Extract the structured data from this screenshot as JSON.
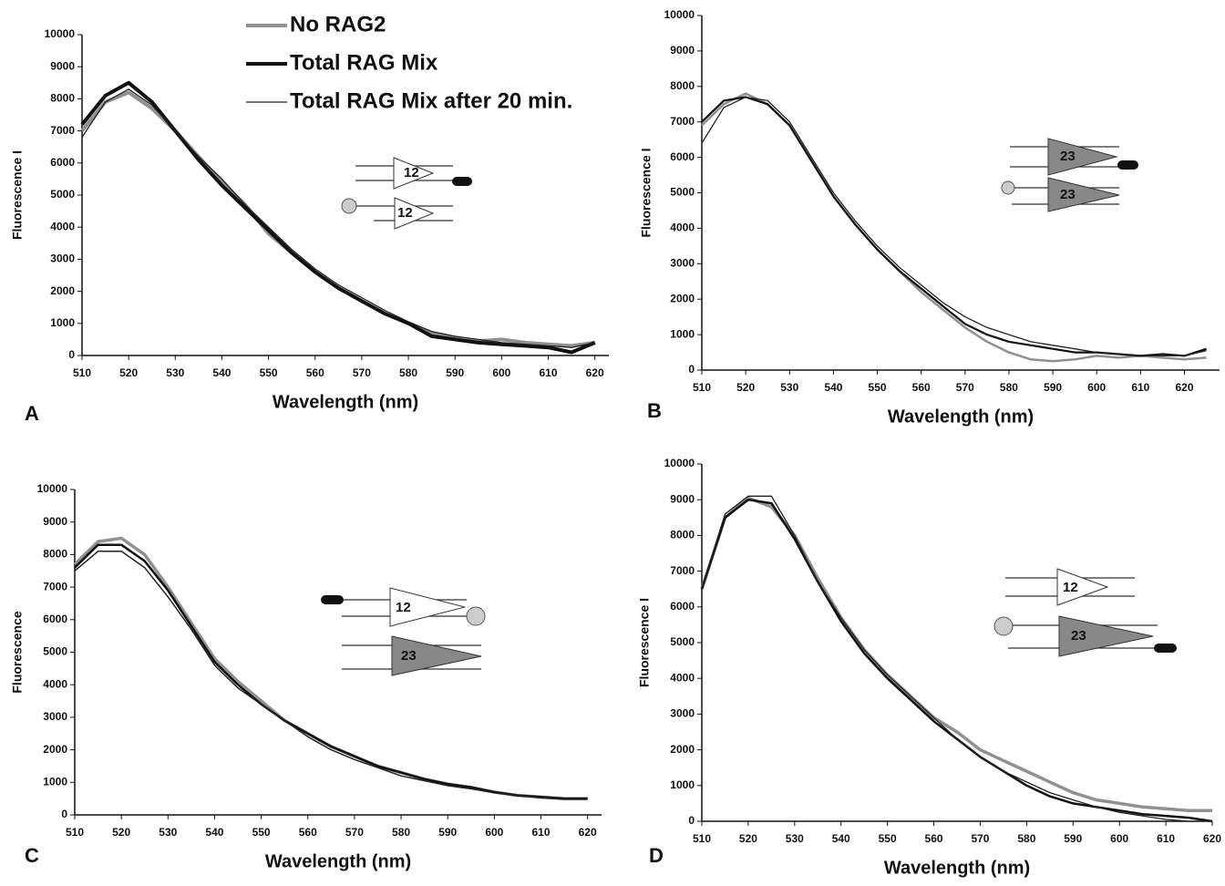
{
  "chart_data": [
    {
      "type": "line",
      "panel_label": "A",
      "x_label": "Wavelength (nm)",
      "y_label": "Fluorescence I",
      "legend": "top",
      "xlim": [
        510,
        623
      ],
      "xticks": [
        510,
        520,
        530,
        540,
        550,
        560,
        570,
        580,
        590,
        600,
        610,
        620
      ],
      "ylim": [
        0,
        10000
      ],
      "yticks": [
        0,
        1000,
        2000,
        3000,
        4000,
        5000,
        6000,
        7000,
        8000,
        9000,
        10000
      ],
      "annotations": [
        "12",
        "12"
      ],
      "x": [
        510,
        515,
        520,
        525,
        530,
        535,
        540,
        545,
        550,
        555,
        560,
        565,
        570,
        575,
        580,
        585,
        590,
        595,
        600,
        605,
        610,
        615,
        620
      ],
      "series": [
        {
          "name": "No RAG2",
          "color": "#909090",
          "line_width": 4,
          "values": [
            7000,
            7900,
            8200,
            7700,
            7000,
            6200,
            5400,
            4700,
            3800,
            3200,
            2600,
            2100,
            1700,
            1300,
            1000,
            700,
            550,
            450,
            500,
            400,
            350,
            300,
            400
          ]
        },
        {
          "name": "Total RAG Mix",
          "color": "#111111",
          "line_width": 4,
          "values": [
            7200,
            8100,
            8500,
            7900,
            7000,
            6100,
            5300,
            4600,
            3900,
            3200,
            2600,
            2100,
            1700,
            1300,
            1000,
            600,
            500,
            400,
            350,
            300,
            250,
            100,
            400
          ]
        },
        {
          "name": "Total RAG Mix after 20 min.",
          "color": "#222222",
          "line_width": 1.3,
          "values": [
            6800,
            7900,
            8300,
            7800,
            7000,
            6200,
            5500,
            4700,
            4000,
            3300,
            2700,
            2200,
            1800,
            1400,
            1050,
            750,
            600,
            500,
            400,
            350,
            300,
            250,
            400
          ]
        }
      ]
    },
    {
      "type": "line",
      "panel_label": "B",
      "x_label": "Wavelength (nm)",
      "y_label": "Fluorescence I",
      "xlim": [
        510,
        628
      ],
      "xticks": [
        510,
        520,
        530,
        540,
        550,
        560,
        570,
        580,
        590,
        600,
        610,
        620
      ],
      "ylim": [
        0,
        10000
      ],
      "yticks": [
        0,
        1000,
        2000,
        3000,
        4000,
        5000,
        6000,
        7000,
        8000,
        9000,
        10000
      ],
      "annotations": [
        "23",
        "23"
      ],
      "x": [
        510,
        515,
        520,
        525,
        530,
        535,
        540,
        545,
        550,
        555,
        560,
        565,
        570,
        575,
        580,
        585,
        590,
        595,
        600,
        605,
        610,
        615,
        620,
        625
      ],
      "series": [
        {
          "color": "#909090",
          "line_width": 2.5,
          "values": [
            6900,
            7500,
            7800,
            7500,
            6900,
            5900,
            4900,
            4100,
            3400,
            2800,
            2200,
            1700,
            1200,
            800,
            500,
            300,
            250,
            300,
            400,
            350,
            400,
            350,
            300,
            350
          ]
        },
        {
          "color": "#111111",
          "line_width": 2.2,
          "values": [
            7000,
            7600,
            7700,
            7500,
            6900,
            5900,
            4900,
            4100,
            3400,
            2800,
            2300,
            1800,
            1300,
            1000,
            800,
            700,
            600,
            500,
            500,
            450,
            400,
            450,
            400,
            600
          ]
        },
        {
          "color": "#222222",
          "line_width": 1.3,
          "values": [
            6400,
            7400,
            7700,
            7600,
            7000,
            6000,
            5000,
            4200,
            3500,
            2900,
            2400,
            1900,
            1500,
            1200,
            1000,
            800,
            700,
            600,
            500,
            450,
            400,
            400,
            400,
            550
          ]
        }
      ]
    },
    {
      "type": "line",
      "panel_label": "C",
      "x_label": "Wavelength (nm)",
      "y_label": "Fluorescence",
      "xlim": [
        510,
        623
      ],
      "xticks": [
        510,
        520,
        530,
        540,
        550,
        560,
        570,
        580,
        590,
        600,
        610,
        620
      ],
      "ylim": [
        0,
        10000
      ],
      "yticks": [
        0,
        1000,
        2000,
        3000,
        4000,
        5000,
        6000,
        7000,
        8000,
        9000,
        10000
      ],
      "annotations": [
        "12",
        "23"
      ],
      "x": [
        510,
        515,
        520,
        525,
        530,
        535,
        540,
        545,
        550,
        555,
        560,
        565,
        570,
        575,
        580,
        585,
        590,
        595,
        600,
        605,
        610,
        615,
        620
      ],
      "series": [
        {
          "color": "#909090",
          "line_width": 3.5,
          "values": [
            7700,
            8400,
            8500,
            8000,
            7000,
            5900,
            4800,
            4100,
            3500,
            2900,
            2500,
            2100,
            1800,
            1500,
            1300,
            1100,
            950,
            850,
            700,
            600,
            550,
            500,
            500
          ]
        },
        {
          "color": "#111111",
          "line_width": 2.5,
          "values": [
            7600,
            8300,
            8300,
            7800,
            6900,
            5800,
            4700,
            4000,
            3400,
            2900,
            2500,
            2100,
            1800,
            1500,
            1300,
            1100,
            950,
            850,
            700,
            600,
            550,
            500,
            500
          ]
        },
        {
          "color": "#222222",
          "line_width": 1.5,
          "values": [
            7500,
            8100,
            8100,
            7600,
            6700,
            5700,
            4600,
            3900,
            3400,
            2900,
            2400,
            2000,
            1700,
            1450,
            1200,
            1050,
            900,
            800,
            680,
            600,
            520,
            480,
            480
          ]
        }
      ]
    },
    {
      "type": "line",
      "panel_label": "D",
      "x_label": "Wavelength (nm)",
      "y_label": "Fluorescence I",
      "xlim": [
        510,
        620
      ],
      "xticks": [
        510,
        520,
        530,
        540,
        550,
        560,
        570,
        580,
        590,
        600,
        610,
        620
      ],
      "ylim": [
        0,
        10000
      ],
      "yticks": [
        0,
        1000,
        2000,
        3000,
        4000,
        5000,
        6000,
        7000,
        8000,
        9000,
        10000
      ],
      "annotations": [
        "12",
        "23"
      ],
      "x": [
        510,
        515,
        520,
        525,
        530,
        535,
        540,
        545,
        550,
        555,
        560,
        565,
        570,
        575,
        580,
        585,
        590,
        595,
        600,
        605,
        610,
        615,
        620
      ],
      "series": [
        {
          "color": "#909090",
          "line_width": 3.5,
          "values": [
            6500,
            8500,
            9050,
            8800,
            8000,
            6800,
            5700,
            4800,
            4100,
            3500,
            2900,
            2500,
            2000,
            1700,
            1400,
            1100,
            800,
            600,
            500,
            400,
            350,
            300,
            300
          ]
        },
        {
          "color": "#111111",
          "line_width": 2.5,
          "values": [
            6500,
            8500,
            9000,
            8900,
            7900,
            6700,
            5600,
            4700,
            4000,
            3400,
            2800,
            2300,
            1800,
            1400,
            1000,
            700,
            500,
            400,
            300,
            200,
            150,
            100,
            0
          ]
        },
        {
          "color": "#222222",
          "line_width": 1.3,
          "values": [
            6500,
            8600,
            9100,
            9100,
            8000,
            6700,
            5700,
            4800,
            4100,
            3500,
            2900,
            2300,
            1800,
            1400,
            1100,
            800,
            600,
            400,
            250,
            150,
            50,
            0,
            0
          ]
        }
      ]
    }
  ]
}
